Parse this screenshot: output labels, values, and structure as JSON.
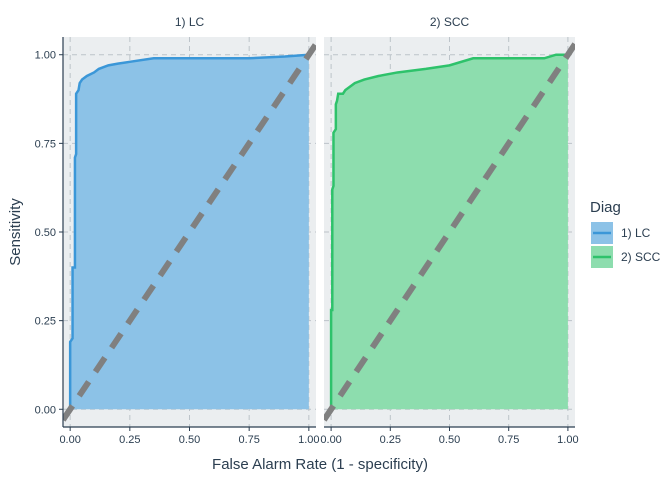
{
  "chart_data": {
    "type": "area",
    "xlabel": "False Alarm Rate (1 - specificity)",
    "ylabel": "Sensitivity",
    "xlim": [
      -0.03,
      1.03
    ],
    "ylim": [
      -0.05,
      1.05
    ],
    "x_ticks": [
      "0.00",
      "0.25",
      "0.50",
      "0.75",
      "1.00"
    ],
    "y_ticks": [
      "0.00",
      "0.25",
      "0.50",
      "0.75",
      "1.00"
    ],
    "grid": true,
    "reference_line": "diagonal dashed",
    "legend": {
      "title": "Diag",
      "placement": "right",
      "entries": [
        "1) LC",
        "2) SCC"
      ]
    },
    "facets": [
      {
        "strip": "1) LC",
        "series_index": 0,
        "color": "#3b97d8",
        "fill": "#8cc2e7",
        "points": [
          [
            0,
            0
          ],
          [
            0,
            0.19
          ],
          [
            0.01,
            0.2
          ],
          [
            0.01,
            0.4
          ],
          [
            0.02,
            0.4
          ],
          [
            0.02,
            0.71
          ],
          [
            0.025,
            0.72
          ],
          [
            0.025,
            0.89
          ],
          [
            0.035,
            0.9
          ],
          [
            0.04,
            0.92
          ],
          [
            0.05,
            0.93
          ],
          [
            0.07,
            0.94
          ],
          [
            0.1,
            0.95
          ],
          [
            0.12,
            0.96
          ],
          [
            0.16,
            0.97
          ],
          [
            0.2,
            0.975
          ],
          [
            0.25,
            0.98
          ],
          [
            0.35,
            0.99
          ],
          [
            0.5,
            0.99
          ],
          [
            0.6,
            0.99
          ],
          [
            0.75,
            0.99
          ],
          [
            0.9,
            0.995
          ],
          [
            1.0,
            1.0
          ],
          [
            1.0,
            0
          ]
        ]
      },
      {
        "strip": "2) SCC",
        "series_index": 1,
        "color": "#2ec26b",
        "fill": "#8dddae",
        "points": [
          [
            0,
            0
          ],
          [
            0,
            0.28
          ],
          [
            0.005,
            0.28
          ],
          [
            0.005,
            0.62
          ],
          [
            0.01,
            0.63
          ],
          [
            0.01,
            0.78
          ],
          [
            0.02,
            0.79
          ],
          [
            0.02,
            0.86
          ],
          [
            0.025,
            0.87
          ],
          [
            0.03,
            0.89
          ],
          [
            0.05,
            0.89
          ],
          [
            0.06,
            0.9
          ],
          [
            0.1,
            0.92
          ],
          [
            0.14,
            0.93
          ],
          [
            0.2,
            0.94
          ],
          [
            0.28,
            0.95
          ],
          [
            0.4,
            0.96
          ],
          [
            0.5,
            0.97
          ],
          [
            0.6,
            0.99
          ],
          [
            0.75,
            0.99
          ],
          [
            0.9,
            0.99
          ],
          [
            0.95,
            1.0
          ],
          [
            1.0,
            1.0
          ],
          [
            1.0,
            0
          ]
        ]
      }
    ]
  }
}
